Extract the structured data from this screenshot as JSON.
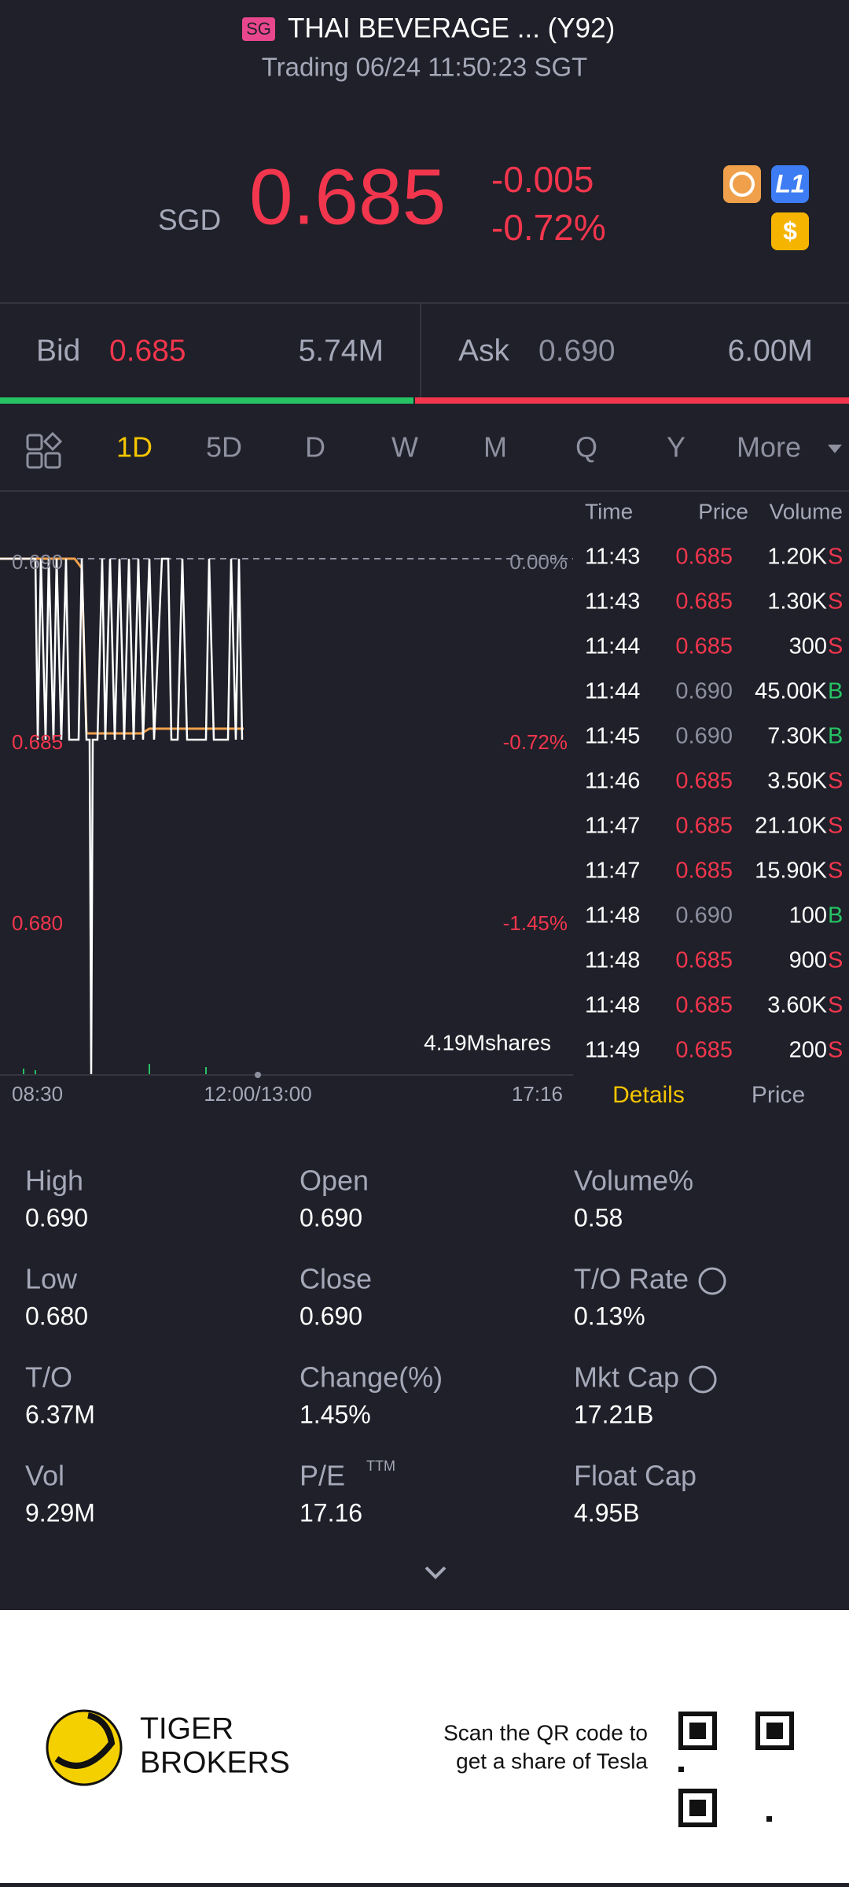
{
  "header": {
    "market": "SG",
    "title": "THAI BEVERAGE ... (Y92)",
    "status": "Trading 06/24 11:50:23 SGT"
  },
  "quote": {
    "currency": "SGD",
    "price": "0.685",
    "change": "-0.005",
    "change_pct": "-0.72%"
  },
  "book": {
    "bid_label": "Bid",
    "bid": "0.685",
    "bid_size": "5.74M",
    "ask_label": "Ask",
    "ask": "0.690",
    "ask_size": "6.00M"
  },
  "tabs": [
    "1D",
    "5D",
    "D",
    "W",
    "M",
    "Q",
    "Y",
    "More"
  ],
  "chart": {
    "price_labels": [
      "0.690",
      "0.685",
      "0.680"
    ],
    "pct_labels": [
      "0.00%",
      "-0.72%",
      "-1.45%"
    ],
    "volume": "4.19Mshares",
    "x_labels": [
      "08:30",
      "12:00/13:00",
      "17:16"
    ]
  },
  "trades": {
    "headers": [
      "Time",
      "Price",
      "Volume"
    ],
    "rows": [
      [
        "11:43",
        "0.685",
        "1.20K",
        "S"
      ],
      [
        "11:43",
        "0.685",
        "1.30K",
        "S"
      ],
      [
        "11:44",
        "0.685",
        "300",
        "S"
      ],
      [
        "11:44",
        "0.690",
        "45.00K",
        "B"
      ],
      [
        "11:45",
        "0.690",
        "7.30K",
        "B"
      ],
      [
        "11:46",
        "0.685",
        "3.50K",
        "S"
      ],
      [
        "11:47",
        "0.685",
        "21.10K",
        "S"
      ],
      [
        "11:47",
        "0.685",
        "15.90K",
        "S"
      ],
      [
        "11:48",
        "0.690",
        "100",
        "B"
      ],
      [
        "11:48",
        "0.685",
        "900",
        "S"
      ],
      [
        "11:48",
        "0.685",
        "3.60K",
        "S"
      ],
      [
        "11:49",
        "0.685",
        "200",
        "S"
      ]
    ]
  },
  "detail_tabs": [
    "Details",
    "Price"
  ],
  "stats": [
    [
      "High",
      "0.690"
    ],
    [
      "Open",
      "0.690"
    ],
    [
      "Volume%",
      "0.58"
    ],
    [
      "Low",
      "0.680"
    ],
    [
      "Close",
      "0.690"
    ],
    [
      "T/O Rate",
      "0.13%"
    ],
    [
      "T/O",
      "6.37M"
    ],
    [
      "Change(%)",
      "1.45%"
    ],
    [
      "Mkt Cap",
      "17.21B"
    ],
    [
      "Vol",
      "9.29M"
    ],
    [
      "P/E",
      "17.16"
    ],
    [
      "Float Cap",
      "4.95B"
    ]
  ],
  "pe_sup": "TTM",
  "footer": {
    "brand": [
      "TIGER",
      "BROKERS"
    ],
    "promo": [
      "Scan the QR code to",
      "get a share of Tesla"
    ]
  }
}
